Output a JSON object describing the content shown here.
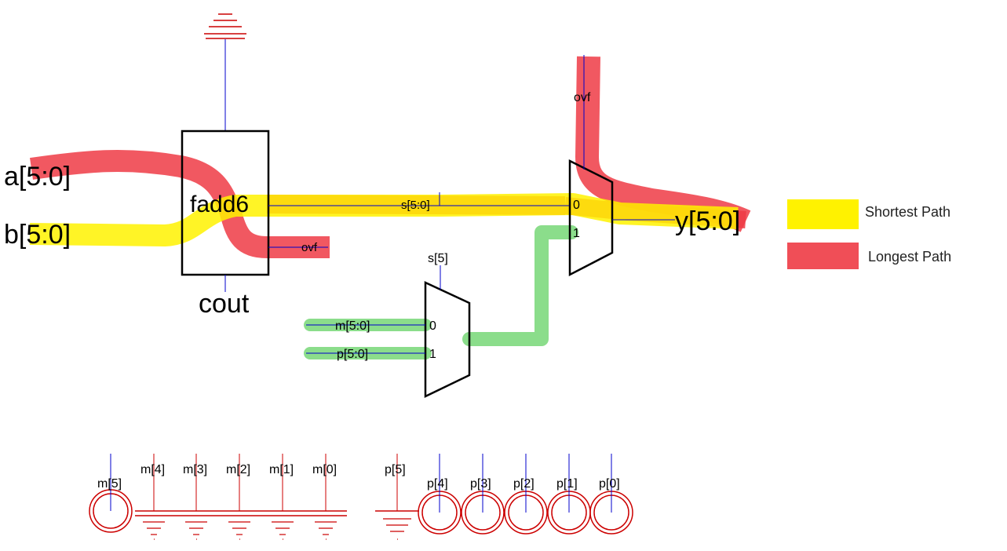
{
  "inputs": {
    "a_label": "a[5:0]",
    "b_label": "b[5:0]"
  },
  "adder": {
    "name": "fadd6",
    "sum_label": "s[5:0]",
    "ovf_label": "ovf",
    "cout_label": "cout"
  },
  "mux_select": {
    "select_label": "s[5]",
    "in0_label": "m[5:0]",
    "in1_label": "p[5:0]",
    "port0": "0",
    "port1": "1"
  },
  "mux_output": {
    "select_label": "ovf",
    "port0": "0",
    "port1": "1",
    "out_label": "y[5:0]"
  },
  "legend": [
    {
      "label": "Shortest Path",
      "color": "#fff200"
    },
    {
      "label": "Longest Path",
      "color": "#ee3b45"
    }
  ],
  "m_bits": {
    "labels": [
      "m[5]",
      "m[4]",
      "m[3]",
      "m[2]",
      "m[1]",
      "m[0]"
    ]
  },
  "p_bits": {
    "labels": [
      "p[5]",
      "p[4]",
      "p[3]",
      "p[2]",
      "p[1]",
      "p[0]"
    ]
  },
  "colors": {
    "wire": "#0000cc",
    "symbol": "#cc0000",
    "shortest": "#fff200",
    "longest": "#ee3b45",
    "mux_path": "#7ed97e"
  }
}
